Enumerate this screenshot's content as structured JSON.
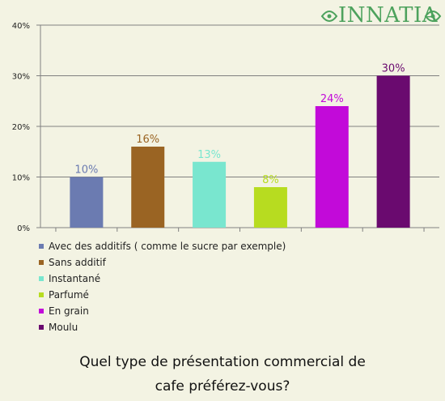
{
  "brand": {
    "name": "INNATIA"
  },
  "chart_data": {
    "type": "bar",
    "categories": [
      "Avec des additifs ( comme le sucre par exemple)",
      "Sans additif",
      "Instantané",
      "Parfumé",
      "En grain",
      "Moulu"
    ],
    "values": [
      10,
      16,
      13,
      8,
      24,
      30
    ],
    "value_labels": [
      "10%",
      "16%",
      "13%",
      "8%",
      "24%",
      "30%"
    ],
    "colors": [
      "#6b7bb1",
      "#9a6423",
      "#79e6cf",
      "#b7dc20",
      "#c20ad9",
      "#6a0a6f"
    ],
    "ylim": [
      0,
      40
    ],
    "yticks": [
      0,
      10,
      20,
      30,
      40
    ],
    "ytick_labels": [
      "0%",
      "10%",
      "20%",
      "30%",
      "40%"
    ],
    "grid": true,
    "legend_position": "bottom",
    "title": "Quel type de présentation commercial de cafe préférez-vous?"
  },
  "caption": {
    "line1": "Quel type de présentation commercial de",
    "line2": "cafe préférez-vous?"
  }
}
